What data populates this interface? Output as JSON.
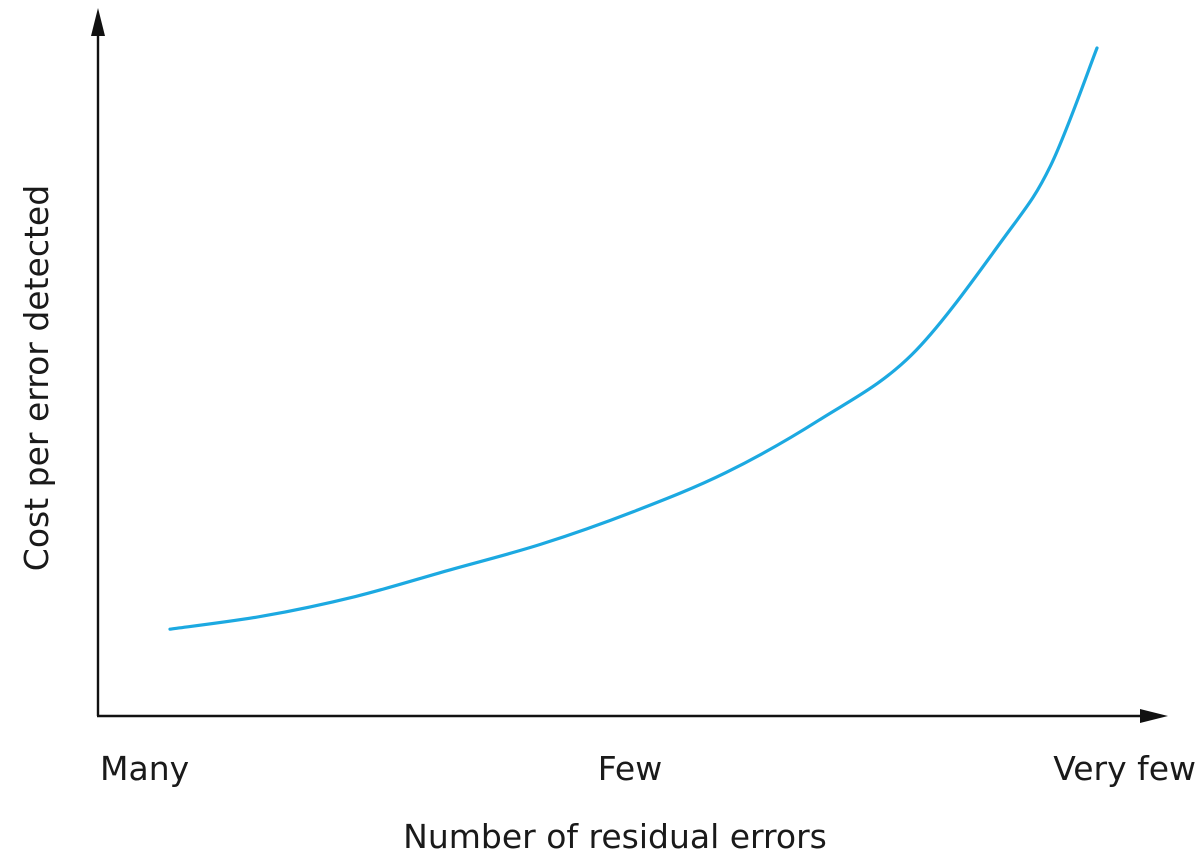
{
  "chart_data": {
    "type": "line",
    "title": "",
    "xlabel": "Number of residual errors",
    "ylabel": "Cost per error detected",
    "x_ticks": [
      "Many",
      "Few",
      "Very few"
    ],
    "ylim": [
      0,
      100
    ],
    "grid": false,
    "legend": "none",
    "series": [
      {
        "color": "#1ca9e1",
        "x": [
          0.0,
          0.1,
          0.2,
          0.3,
          0.4,
          0.5,
          0.6,
          0.7,
          0.8,
          0.9,
          0.95,
          1.0
        ],
        "y": [
          11,
          13,
          16,
          20,
          24,
          29,
          35,
          43,
          53,
          71,
          82,
          100
        ]
      }
    ]
  }
}
